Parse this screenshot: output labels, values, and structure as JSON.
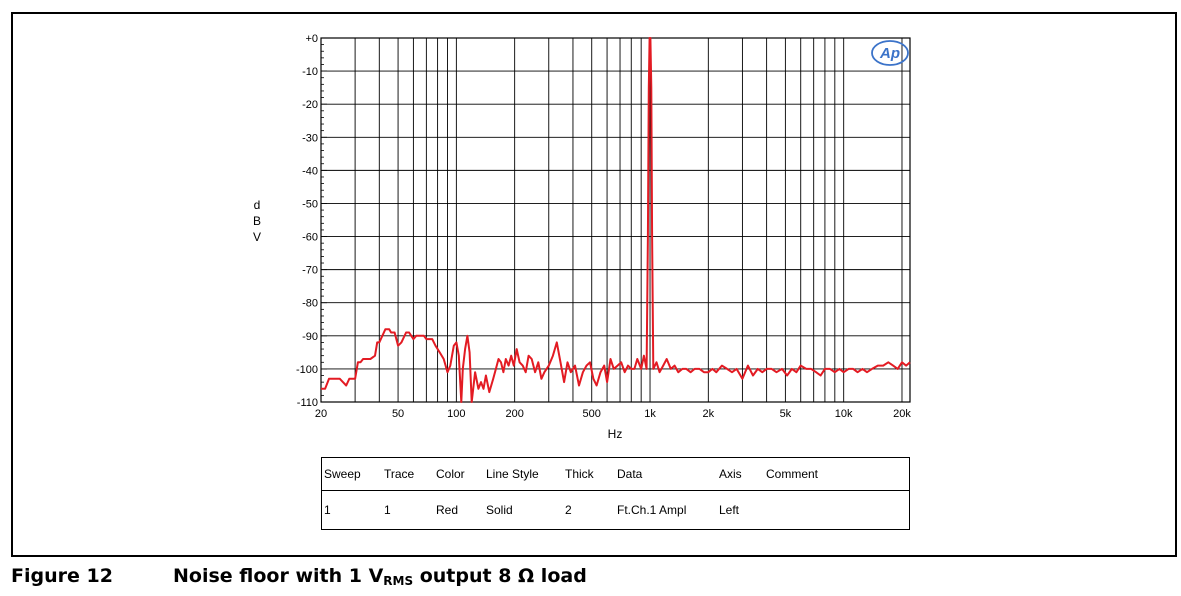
{
  "chart_data": {
    "type": "line",
    "xlabel": "Hz",
    "ylabel": [
      "d",
      "B",
      "V"
    ],
    "xscale": "log",
    "xlim": [
      20,
      22000
    ],
    "ylim": [
      -110,
      0
    ],
    "grid": true,
    "x_ticks": [
      {
        "value": 20,
        "label": "20"
      },
      {
        "value": 50,
        "label": "50"
      },
      {
        "value": 100,
        "label": "100"
      },
      {
        "value": 200,
        "label": "200"
      },
      {
        "value": 500,
        "label": "500"
      },
      {
        "value": 1000,
        "label": "1k"
      },
      {
        "value": 2000,
        "label": "2k"
      },
      {
        "value": 5000,
        "label": "5k"
      },
      {
        "value": 10000,
        "label": "10k"
      },
      {
        "value": 20000,
        "label": "20k"
      }
    ],
    "y_ticks": [
      {
        "value": 0,
        "label": "+0"
      },
      {
        "value": -10,
        "label": "-10"
      },
      {
        "value": -20,
        "label": "-20"
      },
      {
        "value": -30,
        "label": "-30"
      },
      {
        "value": -40,
        "label": "-40"
      },
      {
        "value": -50,
        "label": "-50"
      },
      {
        "value": -60,
        "label": "-60"
      },
      {
        "value": -70,
        "label": "-70"
      },
      {
        "value": -80,
        "label": "-80"
      },
      {
        "value": -90,
        "label": "-90"
      },
      {
        "value": -100,
        "label": "-100"
      },
      {
        "value": -110,
        "label": "-110"
      }
    ],
    "series": [
      {
        "color": "#e31b23",
        "x": [
          20,
          21,
          22,
          23,
          25,
          27,
          28,
          30,
          31,
          32,
          33,
          35,
          36,
          38,
          39,
          40,
          43,
          44,
          45,
          46,
          48,
          50,
          52,
          55,
          57,
          60,
          62,
          65,
          68,
          70,
          72,
          75,
          78,
          82,
          86,
          90,
          93,
          97,
          100,
          103,
          106,
          108,
          111,
          114,
          117,
          120,
          125,
          130,
          134,
          138,
          142,
          148,
          155,
          160,
          165,
          170,
          175,
          180,
          186,
          192,
          198,
          205,
          212,
          220,
          228,
          236,
          245,
          255,
          265,
          275,
          285,
          300,
          315,
          330,
          345,
          360,
          375,
          390,
          410,
          430,
          450,
          470,
          490,
          510,
          530,
          555,
          580,
          600,
          625,
          650,
          680,
          710,
          740,
          770,
          800,
          830,
          860,
          900,
          930,
          960,
          975,
          985,
          995,
          1000,
          1005,
          1015,
          1025,
          1040,
          1080,
          1120,
          1170,
          1220,
          1280,
          1340,
          1400,
          1470,
          1540,
          1620,
          1700,
          1800,
          1900,
          2000,
          2100,
          2200,
          2350,
          2500,
          2650,
          2800,
          3000,
          3200,
          3400,
          3600,
          3800,
          4000,
          4250,
          4500,
          4800,
          5100,
          5400,
          5700,
          6000,
          6400,
          6800,
          7200,
          7600,
          8000,
          8500,
          9000,
          9500,
          10000,
          10600,
          11200,
          11800,
          12500,
          13200,
          14000,
          15000,
          16000,
          17000,
          18000,
          19000,
          20000,
          21000,
          22000
        ],
        "y": [
          -106,
          -106,
          -103,
          -103,
          -103,
          -105,
          -103,
          -103,
          -98,
          -98,
          -97,
          -97,
          -97,
          -96,
          -92,
          -92,
          -88,
          -88,
          -88,
          -89,
          -89,
          -93,
          -92,
          -89,
          -89,
          -91,
          -90,
          -90,
          -90,
          -91,
          -91,
          -91,
          -93,
          -95,
          -97,
          -101,
          -99,
          -93,
          -92,
          -96,
          -110,
          -100,
          -94,
          -90,
          -95,
          -110,
          -101,
          -106,
          -104,
          -106,
          -102,
          -107,
          -103,
          -100,
          -97,
          -98,
          -101,
          -97,
          -99,
          -96,
          -99,
          -94,
          -98,
          -99,
          -101,
          -96,
          -97,
          -101,
          -98,
          -103,
          -101,
          -99,
          -96,
          -92,
          -98,
          -104,
          -98,
          -101,
          -99,
          -105,
          -101,
          -99,
          -98,
          -103,
          -105,
          -101,
          -99,
          -104,
          -97,
          -100,
          -99,
          -98,
          -101,
          -99,
          -100,
          -100,
          -97,
          -100,
          -96,
          -100,
          -60,
          -15,
          0,
          0,
          0,
          -15,
          -60,
          -100,
          -98,
          -101,
          -99,
          -97,
          -100,
          -99,
          -101,
          -100,
          -100,
          -101,
          -100,
          -100,
          -101,
          -101,
          -100,
          -101,
          -99,
          -100,
          -101,
          -100,
          -103,
          -99,
          -102,
          -100,
          -101,
          -100,
          -100,
          -101,
          -100,
          -102,
          -100,
          -101,
          -99,
          -100,
          -100,
          -101,
          -102,
          -100,
          -100,
          -101,
          -100,
          -101,
          -100,
          -100,
          -101,
          -100,
          -101,
          -100,
          -99,
          -99,
          -98,
          -99,
          -100,
          -98,
          -99,
          -98
        ]
      }
    ]
  },
  "legend_table": {
    "headers": [
      "Sweep",
      "Trace",
      "Color",
      "Line Style",
      "Thick",
      "Data",
      "Axis",
      "Comment"
    ],
    "row": [
      "1",
      "1",
      "Red",
      "Solid",
      "2",
      "Ft.Ch.1 Ampl",
      "Left",
      ""
    ]
  },
  "logo": "Ap",
  "caption": {
    "number": "Figure 12",
    "text_before": "Noise floor with 1 V",
    "subscript": "RMS",
    "text_after": " output 8 Ω load"
  }
}
